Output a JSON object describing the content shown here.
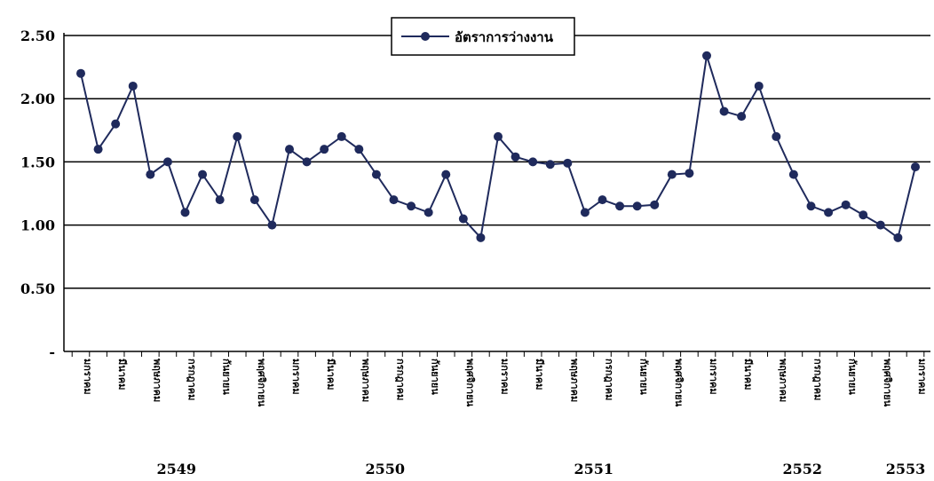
{
  "chart_data": {
    "type": "line",
    "title": "",
    "xlabel": "",
    "ylabel": "",
    "ylim": [
      0,
      2.5
    ],
    "yticks": [
      0,
      0.5,
      1.0,
      1.5,
      2.0,
      2.5
    ],
    "ytick_labels": [
      "-",
      "0.50",
      "1.00",
      "1.50",
      "2.00",
      "2.50"
    ],
    "grid": true,
    "legend": "top-center",
    "color": "#1f2a5c",
    "month_labels": [
      "มกราคม",
      "กุมภาพันธ์",
      "มีนาคม",
      "เมษายน",
      "พฤษภาคม",
      "มิถุนายน",
      "กรกฎาคม",
      "สิงหาคม",
      "กันยายน",
      "ตุลาคม",
      "พฤศจิกายน",
      "ธันวาคม"
    ],
    "years": [
      {
        "label": "2549",
        "center_index": 5.5
      },
      {
        "label": "2550",
        "center_index": 17.5
      },
      {
        "label": "2551",
        "center_index": 29.5
      },
      {
        "label": "2552",
        "center_index": 41.5
      },
      {
        "label": "2553",
        "center_index": 48.5
      }
    ],
    "series": [
      {
        "name": "อัตราการว่างงาน",
        "values": [
          2.2,
          1.6,
          1.8,
          2.1,
          1.4,
          1.5,
          1.1,
          1.4,
          1.2,
          1.7,
          1.2,
          1.0,
          1.6,
          1.5,
          1.6,
          1.7,
          1.6,
          1.4,
          1.2,
          1.15,
          1.1,
          1.4,
          1.05,
          0.9,
          1.7,
          1.54,
          1.5,
          1.48,
          1.49,
          1.1,
          1.2,
          1.15,
          1.15,
          1.16,
          1.4,
          1.41,
          2.34,
          1.9,
          1.86,
          2.1,
          1.7,
          1.4,
          1.15,
          1.1,
          1.16,
          1.08,
          1.0,
          0.9,
          1.46
        ]
      }
    ]
  }
}
